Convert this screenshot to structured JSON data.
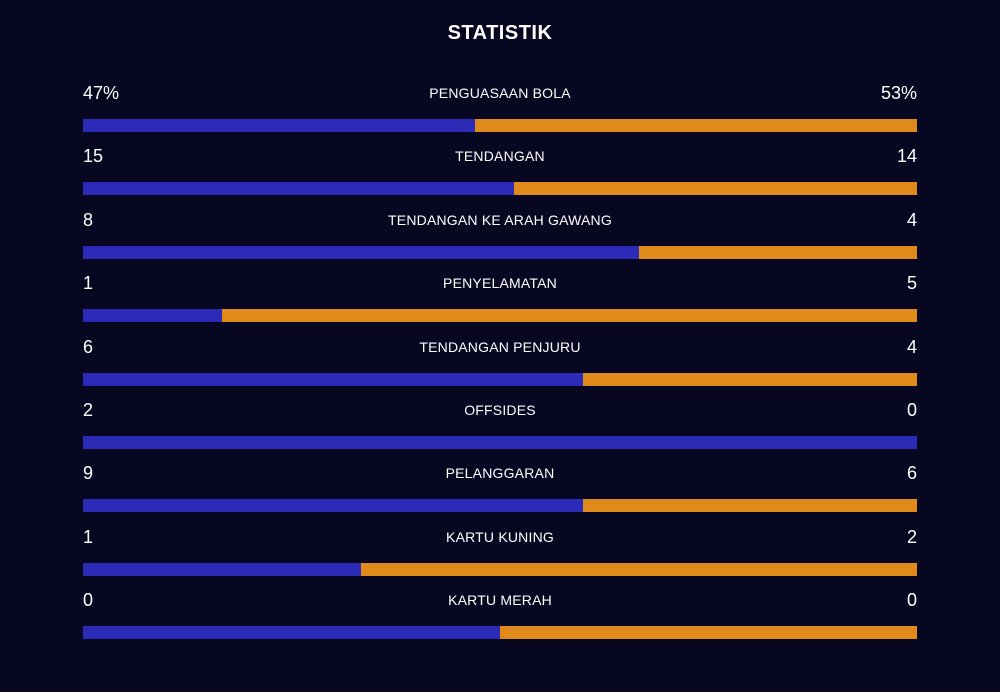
{
  "title": "STATISTIK",
  "colors": {
    "background": "#070721",
    "home": "#2b2bb8",
    "away": "#df8a1b",
    "text": "#ffffff"
  },
  "stats": [
    {
      "label": "PENGUASAAN BOLA",
      "left": "47%",
      "right": "53%",
      "home_share": 0.47
    },
    {
      "label": "TENDANGAN",
      "left": "15",
      "right": "14",
      "home_share": 0.517
    },
    {
      "label": "TENDANGAN KE ARAH GAWANG",
      "left": "8",
      "right": "4",
      "home_share": 0.667
    },
    {
      "label": "PENYELAMATAN",
      "left": "1",
      "right": "5",
      "home_share": 0.167
    },
    {
      "label": "TENDANGAN PENJURU",
      "left": "6",
      "right": "4",
      "home_share": 0.6
    },
    {
      "label": "OFFSIDES",
      "left": "2",
      "right": "0",
      "home_share": 1.0
    },
    {
      "label": "PELANGGARAN",
      "left": "9",
      "right": "6",
      "home_share": 0.6
    },
    {
      "label": "KARTU KUNING",
      "left": "1",
      "right": "2",
      "home_share": 0.333
    },
    {
      "label": "KARTU MERAH",
      "left": "0",
      "right": "0",
      "home_share": 0.5
    }
  ]
}
